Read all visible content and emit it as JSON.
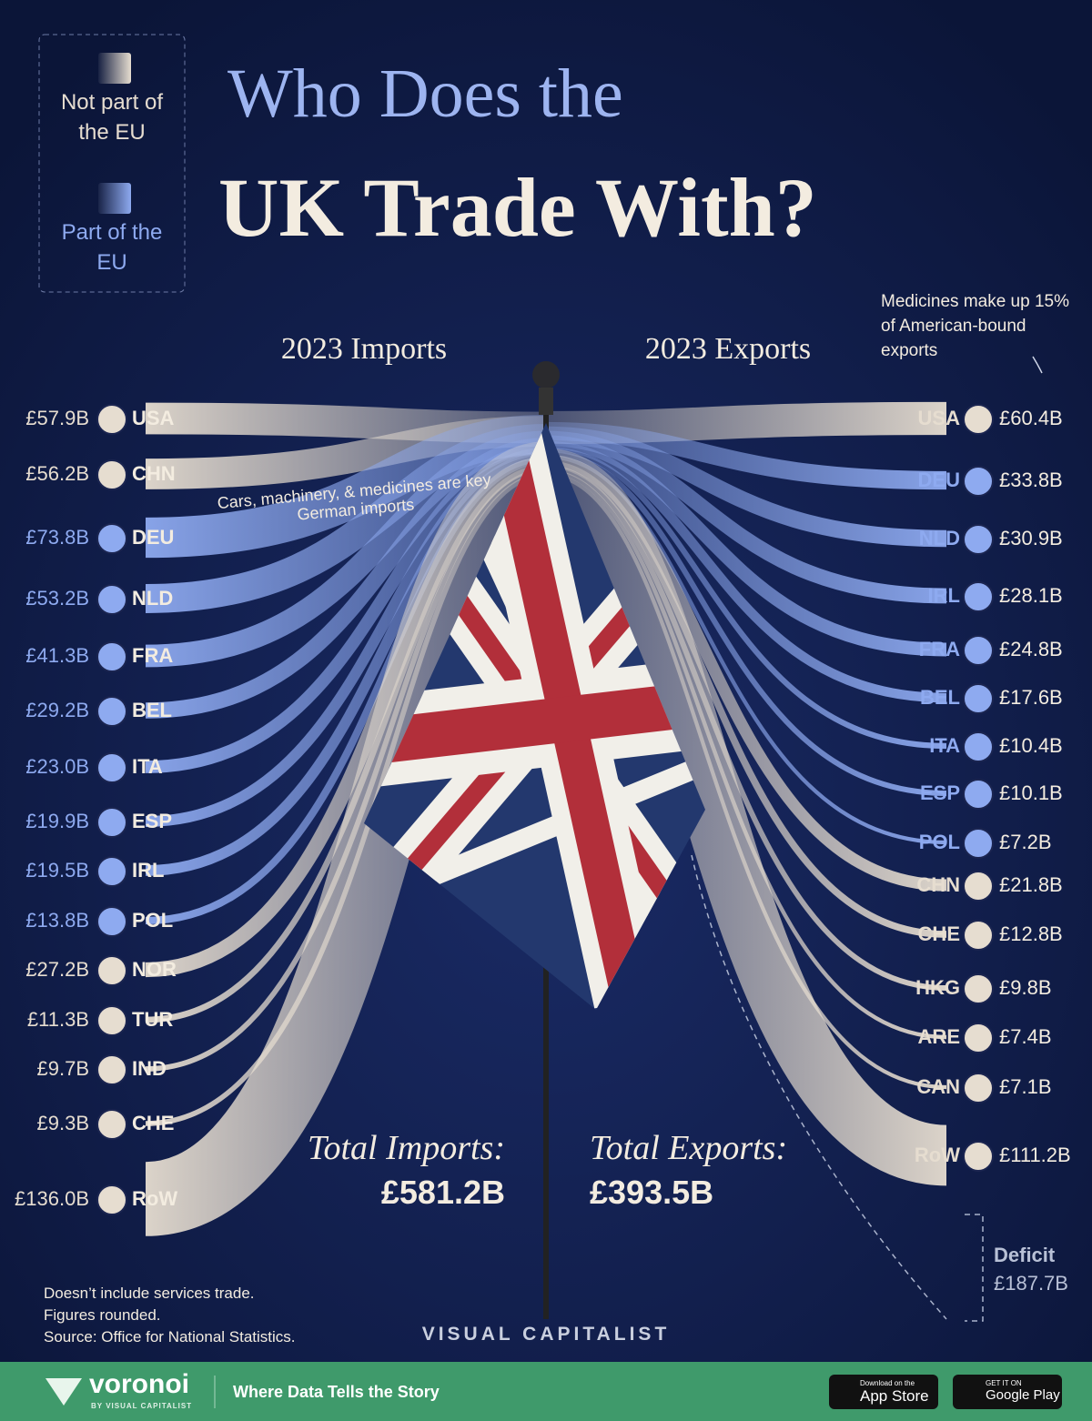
{
  "title_line1": "Who Does the",
  "title_line2": "UK Trade With?",
  "legend": [
    {
      "name": "Not part of the EU",
      "color": "#e6ddd0"
    },
    {
      "name": "Part of the EU",
      "color": "#8eaaf0"
    }
  ],
  "chart_data": [
    {
      "type": "flow",
      "title": "2023 Imports",
      "categories": [
        "USA",
        "CHN",
        "DEU",
        "NLD",
        "FRA",
        "BEL",
        "ITA",
        "ESP",
        "IRL",
        "POL",
        "NOR",
        "TUR",
        "IND",
        "CHE",
        "RoW"
      ],
      "values": [
        57.9,
        56.2,
        73.8,
        53.2,
        41.3,
        29.2,
        23.0,
        19.9,
        19.5,
        13.8,
        27.2,
        11.3,
        9.7,
        9.3,
        136.0
      ],
      "value_labels": [
        "£57.9B",
        "£56.2B",
        "£73.8B",
        "£53.2B",
        "£41.3B",
        "£29.2B",
        "£23.0B",
        "£19.9B",
        "£19.5B",
        "£13.8B",
        "£27.2B",
        "£11.3B",
        "£9.7B",
        "£9.3B",
        "£136.0B"
      ],
      "colors": [
        "#e6ddd0",
        "#e6ddd0",
        "#8eaaf0",
        "#8eaaf0",
        "#8eaaf0",
        "#8eaaf0",
        "#8eaaf0",
        "#8eaaf0",
        "#8eaaf0",
        "#8eaaf0",
        "#e6ddd0",
        "#e6ddd0",
        "#e6ddd0",
        "#e6ddd0",
        "#e6ddd0"
      ],
      "total_label": "Total Imports:",
      "total_value_label": "£581.2B"
    },
    {
      "type": "flow",
      "title": "2023 Exports",
      "categories": [
        "USA",
        "DEU",
        "NLD",
        "IRL",
        "FRA",
        "BEL",
        "ITA",
        "ESP",
        "POL",
        "CHN",
        "CHE",
        "HKG",
        "ARE",
        "CAN",
        "RoW"
      ],
      "values": [
        60.4,
        33.8,
        30.9,
        28.1,
        24.8,
        17.6,
        10.4,
        10.1,
        7.2,
        21.8,
        12.8,
        9.8,
        7.4,
        7.1,
        111.2
      ],
      "value_labels": [
        "£60.4B",
        "£33.8B",
        "£30.9B",
        "£28.1B",
        "£24.8B",
        "£17.6B",
        "£10.4B",
        "£10.1B",
        "£7.2B",
        "£21.8B",
        "£12.8B",
        "£9.8B",
        "£7.4B",
        "£7.1B",
        "£111.2B"
      ],
      "colors": [
        "#e6ddd0",
        "#8eaaf0",
        "#8eaaf0",
        "#8eaaf0",
        "#8eaaf0",
        "#8eaaf0",
        "#8eaaf0",
        "#8eaaf0",
        "#8eaaf0",
        "#e6ddd0",
        "#e6ddd0",
        "#e6ddd0",
        "#e6ddd0",
        "#e6ddd0",
        "#e6ddd0"
      ],
      "total_label": "Total Exports:",
      "total_value_label": "£393.5B"
    }
  ],
  "annotations": [
    "Cars, machinery, & medicines are key German imports",
    "Medicines make up 15% of American-bound exports"
  ],
  "deficit": {
    "label": "Deficit",
    "value_label": "£187.7B"
  },
  "notes": [
    "Doesn’t include services trade.",
    "Figures rounded.",
    "Source: Office for National Statistics."
  ],
  "brand": "VISUAL CAPITALIST",
  "footer": {
    "logo": "voronoi",
    "logo_sub": "BY VISUAL CAPITALIST",
    "tagline": "Where Data Tells the Story",
    "app_store": [
      "Download on the",
      "App Store"
    ],
    "google_play": [
      "GET IT ON",
      "Google Play"
    ]
  }
}
